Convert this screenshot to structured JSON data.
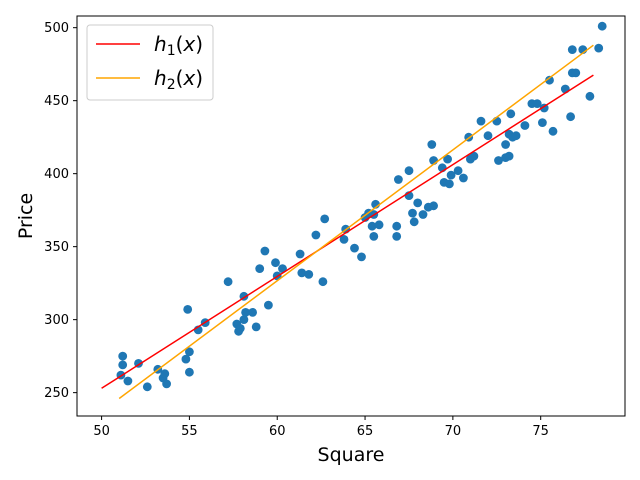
{
  "chart_data": {
    "type": "scatter",
    "xlabel": "Square",
    "ylabel": "Price",
    "xlim": [
      48.6,
      79.8
    ],
    "ylim": [
      234,
      508
    ],
    "xticks": [
      50,
      55,
      60,
      65,
      70,
      75
    ],
    "yticks": [
      250,
      300,
      350,
      400,
      450,
      500
    ],
    "grid": false,
    "legend_position": "top-left",
    "colors": {
      "points": "#1f77b4",
      "h1": "#ff0000",
      "h2": "#ffa500"
    },
    "series": [
      {
        "name": "",
        "kind": "scatter",
        "color": "#1f77b4",
        "points": [
          [
            51.1,
            262
          ],
          [
            51.2,
            275
          ],
          [
            51.2,
            269
          ],
          [
            51.5,
            258
          ],
          [
            52.1,
            270
          ],
          [
            52.6,
            254
          ],
          [
            53.2,
            266
          ],
          [
            53.5,
            260
          ],
          [
            53.6,
            263
          ],
          [
            53.7,
            256
          ],
          [
            54.8,
            273
          ],
          [
            54.9,
            307
          ],
          [
            55.0,
            264
          ],
          [
            55.0,
            278
          ],
          [
            55.5,
            293
          ],
          [
            55.9,
            298
          ],
          [
            57.2,
            326
          ],
          [
            57.7,
            297
          ],
          [
            57.8,
            292
          ],
          [
            57.9,
            294
          ],
          [
            58.1,
            316
          ],
          [
            58.1,
            300
          ],
          [
            58.2,
            305
          ],
          [
            58.6,
            305
          ],
          [
            58.8,
            295
          ],
          [
            59.0,
            335
          ],
          [
            59.3,
            347
          ],
          [
            59.5,
            310
          ],
          [
            59.9,
            339
          ],
          [
            60.0,
            330
          ],
          [
            60.3,
            335
          ],
          [
            61.3,
            345
          ],
          [
            61.4,
            332
          ],
          [
            61.8,
            331
          ],
          [
            62.2,
            358
          ],
          [
            62.6,
            326
          ],
          [
            62.7,
            369
          ],
          [
            63.8,
            355
          ],
          [
            63.9,
            362
          ],
          [
            64.4,
            349
          ],
          [
            64.8,
            343
          ],
          [
            65.0,
            370
          ],
          [
            65.2,
            373
          ],
          [
            65.4,
            364
          ],
          [
            65.5,
            357
          ],
          [
            65.5,
            372
          ],
          [
            65.6,
            379
          ],
          [
            65.8,
            365
          ],
          [
            66.8,
            364
          ],
          [
            66.8,
            357
          ],
          [
            66.9,
            396
          ],
          [
            67.5,
            402
          ],
          [
            67.5,
            385
          ],
          [
            67.7,
            373
          ],
          [
            67.8,
            367
          ],
          [
            68.0,
            380
          ],
          [
            68.3,
            372
          ],
          [
            68.6,
            377
          ],
          [
            68.8,
            420
          ],
          [
            68.9,
            378
          ],
          [
            68.9,
            409
          ],
          [
            69.4,
            404
          ],
          [
            69.5,
            394
          ],
          [
            69.7,
            410
          ],
          [
            69.8,
            393
          ],
          [
            69.9,
            399
          ],
          [
            70.3,
            402
          ],
          [
            70.6,
            397
          ],
          [
            70.9,
            425
          ],
          [
            71.0,
            410
          ],
          [
            71.2,
            412
          ],
          [
            71.6,
            436
          ],
          [
            72.0,
            426
          ],
          [
            72.5,
            436
          ],
          [
            72.6,
            409
          ],
          [
            73.0,
            420
          ],
          [
            73.0,
            411
          ],
          [
            73.2,
            412
          ],
          [
            73.2,
            427
          ],
          [
            73.3,
            441
          ],
          [
            73.4,
            425
          ],
          [
            73.6,
            426
          ],
          [
            74.1,
            433
          ],
          [
            74.5,
            448
          ],
          [
            74.8,
            448
          ],
          [
            75.1,
            435
          ],
          [
            75.2,
            445
          ],
          [
            75.5,
            464
          ],
          [
            75.7,
            429
          ],
          [
            76.4,
            458
          ],
          [
            76.7,
            439
          ],
          [
            76.8,
            469
          ],
          [
            76.8,
            485
          ],
          [
            77.0,
            469
          ],
          [
            77.4,
            485
          ],
          [
            77.8,
            453
          ],
          [
            78.3,
            486
          ],
          [
            78.5,
            501
          ]
        ]
      },
      {
        "name": "h_1(x)",
        "kind": "line",
        "color": "#ff0000",
        "points": [
          [
            50,
            253
          ],
          [
            78,
            467.5
          ]
        ]
      },
      {
        "name": "h_2(x)",
        "kind": "line",
        "color": "#ffa500",
        "points": [
          [
            51,
            246
          ],
          [
            78,
            488
          ]
        ]
      }
    ]
  }
}
